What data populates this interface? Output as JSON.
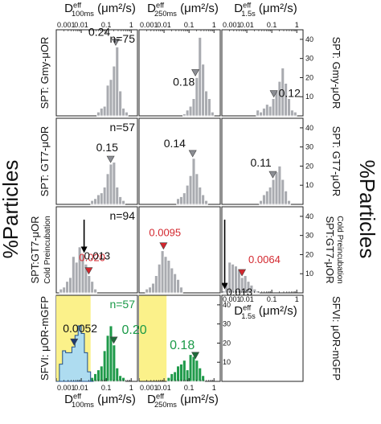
{
  "figure": {
    "ylabel_left": "%Particles",
    "ylabel_right": "%Particles"
  },
  "colors": {
    "gray": "#a9abb0",
    "red": "#e4242b",
    "green": "#1f9a4a",
    "lightblue": "#aedcf0",
    "yellow": "#fbf18a",
    "red_text": "#d3272e",
    "green_text": "#1b9a48"
  },
  "axes": {
    "x_ticks": [
      "0.001",
      "0.01",
      "0.1",
      "1"
    ],
    "x_range_log10": [
      -3,
      0.25
    ],
    "y_ticks": [
      "10",
      "20",
      "30",
      "40"
    ],
    "y_range": [
      0,
      45
    ],
    "top_labels": [
      {
        "main": "D",
        "sup": "eff",
        "sub": "100ms",
        "unit": " (μm²/s)"
      },
      {
        "main": "D",
        "sup": "eff",
        "sub": "250ms",
        "unit": " (μm²/s)"
      },
      {
        "main": "D",
        "sup": "eff",
        "sub": "1.5s",
        "unit": " (μm²/s)"
      }
    ],
    "bottom_labels": [
      {
        "main": "D",
        "sup": "eff",
        "sub": "100ms",
        "unit": " (μm²/s)"
      },
      {
        "main": "D",
        "sup": "eff",
        "sub": "250ms",
        "unit": " (μm²/s)"
      },
      {
        "main": "D",
        "sup": "eff",
        "sub": "1.5s",
        "unit": " (μm²/s)"
      }
    ]
  },
  "rows": [
    {
      "label_left": "SPT: Gmy-μOR",
      "label_right": "SPT: Gmy-μOR",
      "n": "n=75"
    },
    {
      "label_left": "SPT: GT7-μOR",
      "label_right": "SPT: GT7-μOR",
      "n": "n=57"
    },
    {
      "label_left": "SPT:GT7-μOR",
      "label_left2": "Cold Preincubation",
      "label_right": "SPT:GT7-μOR",
      "label_right2": "Cold Preincubation",
      "n": "n=94"
    },
    {
      "label_left": "SFVI: μOR-mGFP",
      "label_right": "SFVI: μOR-mGFP",
      "n": "n=57"
    }
  ],
  "chart_data": [
    {
      "type": "bar",
      "row": 1,
      "col": 1,
      "x_scale": "log",
      "bin_width_log10": 0.125,
      "bin_start_log10": -1.375,
      "values": [
        2,
        4,
        5,
        16,
        19,
        26,
        36,
        13,
        4,
        2
      ],
      "annotations": [
        {
          "label": "0.24",
          "x": 0.24
        }
      ]
    },
    {
      "type": "bar",
      "row": 1,
      "col": 2,
      "x_scale": "log",
      "bin_width_log10": 0.125,
      "bin_start_log10": -1.25,
      "values": [
        1,
        3,
        5,
        9,
        20,
        41,
        27,
        13,
        9,
        2
      ],
      "annotations": [
        {
          "label": "0.18",
          "x": 0.18
        }
      ]
    },
    {
      "type": "bar",
      "row": 1,
      "col": 3,
      "x_scale": "log",
      "bin_width_log10": 0.125,
      "bin_start_log10": -1.625,
      "values": [
        3,
        2,
        4,
        6,
        5,
        9,
        13,
        18,
        25,
        17,
        9,
        3,
        2
      ],
      "annotations": [
        {
          "label": "0.12",
          "x": 0.12
        }
      ]
    },
    {
      "type": "bar",
      "row": 2,
      "col": 1,
      "x_scale": "log",
      "bin_width_log10": 0.125,
      "bin_start_log10": -1.625,
      "values": [
        2,
        3,
        5,
        6,
        9,
        16,
        21,
        22,
        9,
        4,
        2
      ],
      "annotations": [
        {
          "label": "0.15",
          "x": 0.15
        }
      ]
    },
    {
      "type": "bar",
      "row": 2,
      "col": 2,
      "x_scale": "log",
      "bin_width_log10": 0.125,
      "bin_start_log10": -1.5,
      "values": [
        3,
        4,
        6,
        10,
        15,
        24,
        16,
        9,
        5,
        2
      ],
      "annotations": [
        {
          "label": "0.14",
          "x": 0.14
        }
      ]
    },
    {
      "type": "bar",
      "row": 2,
      "col": 3,
      "x_scale": "log",
      "bin_width_log10": 0.125,
      "bin_start_log10": -1.5,
      "values": [
        2,
        5,
        7,
        9,
        13,
        17,
        20,
        13,
        7,
        2
      ],
      "annotations": [
        {
          "label": "0.11",
          "x": 0.11
        }
      ]
    },
    {
      "type": "bar",
      "row": 3,
      "col": 1,
      "x_scale": "log",
      "bin_width_log10": 0.125,
      "bin_start_log10": -2.875,
      "values": [
        2,
        3,
        6,
        8,
        19,
        16,
        24,
        20,
        15,
        9,
        6,
        2
      ],
      "annotations": [
        {
          "label": "0.020",
          "x": 0.02,
          "color": "red"
        },
        {
          "label": "0.013",
          "x": 0.013,
          "arrow": "black"
        }
      ]
    },
    {
      "type": "bar",
      "row": 3,
      "col": 2,
      "x_scale": "log",
      "bin_width_log10": 0.125,
      "bin_start_log10": -2.75,
      "values": [
        2,
        3,
        5,
        9,
        15,
        22,
        19,
        17,
        13,
        10,
        7,
        3
      ],
      "annotations": [
        {
          "label": "0.0095",
          "x": 0.0095,
          "color": "red"
        }
      ]
    },
    {
      "type": "bar",
      "row": 3,
      "col": 3,
      "x_scale": "log",
      "bin_width_log10": 0.125,
      "bin_start_log10": -3.0,
      "values": [
        1,
        5,
        16,
        15,
        14,
        12,
        8,
        9,
        6,
        4,
        2,
        1
      ],
      "annotations": [
        {
          "label": "0.0064",
          "x": 0.0064,
          "color": "red"
        },
        {
          "label": "0.013",
          "x": 0.0013,
          "arrow": "black"
        }
      ]
    },
    {
      "type": "bar",
      "row": 4,
      "col": 1,
      "x_scale": "log",
      "highlight_range_log10": [
        -3,
        -1.625
      ],
      "series": [
        {
          "name": "",
          "color": "lightblue",
          "kind": "outline-filled",
          "bin_width_log10": 0.125,
          "bin_start_log10": -3.0,
          "values": [
            0,
            9,
            16,
            15,
            15,
            18,
            24,
            29,
            25,
            15,
            5,
            0
          ]
        },
        {
          "name": "",
          "color": "green",
          "kind": "bars",
          "bin_width_log10": 0.125,
          "bin_start_log10": -1.625,
          "values": [
            2,
            4,
            6,
            8,
            16,
            24,
            29,
            19,
            7,
            3,
            2
          ]
        }
      ],
      "annotations": [
        {
          "label": "0.0052",
          "x": 0.0052
        },
        {
          "label": "0.20",
          "x": 0.2,
          "color": "green"
        }
      ]
    },
    {
      "type": "bar",
      "row": 4,
      "col": 2,
      "x_scale": "log",
      "highlight_range_log10": [
        -3,
        -1.9
      ],
      "series": [
        {
          "name": "",
          "color": "green",
          "kind": "bars",
          "bin_width_log10": 0.125,
          "bin_start_log10": -1.875,
          "values": [
            2,
            4,
            5,
            8,
            9,
            11,
            6,
            14,
            13,
            11,
            7,
            3
          ]
        }
      ],
      "annotations": [
        {
          "label": "0.18",
          "x": 0.18,
          "color": "green"
        }
      ]
    }
  ]
}
